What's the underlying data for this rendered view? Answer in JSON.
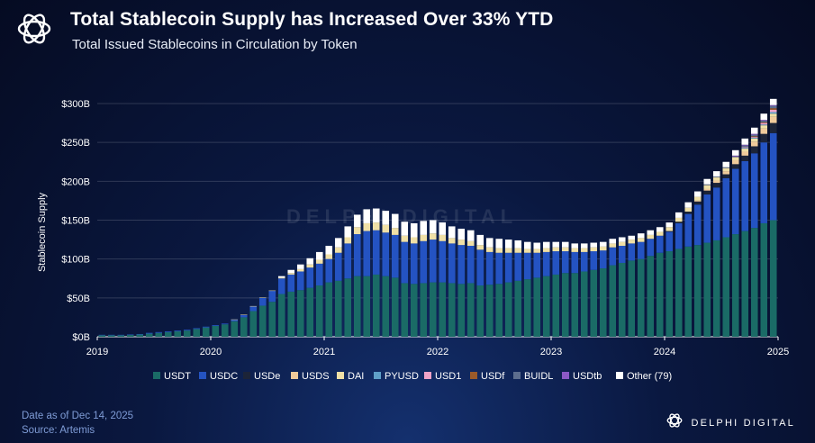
{
  "header": {
    "title": "Total Stablecoin Supply has Increased Over 33% YTD",
    "subtitle": "Total Issued Stablecoins in Circulation by Token"
  },
  "footer": {
    "date_note": "Date as of Dec 14, 2025",
    "source": "Source: Artemis"
  },
  "brand": {
    "name": "DELPHI DIGITAL",
    "watermark": "DELPHI DIGITAL"
  },
  "colors": {
    "USDT": "#1a6b66",
    "USDC": "#2453c2",
    "USDe": "#1c2438",
    "USDS": "#f1cb9b",
    "DAI": "#f0e0a6",
    "PYUSD": "#5fa0c8",
    "USD1": "#f0a3c8",
    "USDf": "#9a5a2a",
    "BUIDL": "#5d6e8e",
    "USDtb": "#8b59c6",
    "Other": "#ffffff"
  },
  "chart_data": {
    "type": "bar",
    "stacked": true,
    "ylabel": "Stablecoin Supply",
    "xlabel": "",
    "ylim": [
      0,
      300
    ],
    "y_unit": "billion USD",
    "y_ticks": [
      "$0B",
      "$50B",
      "$100B",
      "$150B",
      "$200B",
      "$250B",
      "$300B"
    ],
    "x_ticks": [
      "2019",
      "2020",
      "2021",
      "2022",
      "2023",
      "2024",
      "2025"
    ],
    "legend_position": "bottom",
    "legend": [
      "USDT",
      "USDC",
      "USDe",
      "USDS",
      "DAI",
      "PYUSD",
      "USD1",
      "USDf",
      "BUIDL",
      "USDtb",
      "Other (79)"
    ],
    "categories": [
      "2019-01",
      "2019-02",
      "2019-03",
      "2019-04",
      "2019-05",
      "2019-06",
      "2019-07",
      "2019-08",
      "2019-09",
      "2019-10",
      "2019-11",
      "2019-12",
      "2020-01",
      "2020-02",
      "2020-03",
      "2020-04",
      "2020-05",
      "2020-06",
      "2020-07",
      "2020-08",
      "2020-09",
      "2020-10",
      "2020-11",
      "2020-12",
      "2021-01",
      "2021-02",
      "2021-03",
      "2021-04",
      "2021-05",
      "2021-06",
      "2021-07",
      "2021-08",
      "2021-09",
      "2021-10",
      "2021-11",
      "2021-12",
      "2022-01",
      "2022-02",
      "2022-03",
      "2022-04",
      "2022-05",
      "2022-06",
      "2022-07",
      "2022-08",
      "2022-09",
      "2022-10",
      "2022-11",
      "2022-12",
      "2023-01",
      "2023-02",
      "2023-03",
      "2023-04",
      "2023-05",
      "2023-06",
      "2023-07",
      "2023-08",
      "2023-09",
      "2023-10",
      "2023-11",
      "2023-12",
      "2024-01",
      "2024-02",
      "2024-03",
      "2024-04",
      "2024-05",
      "2024-06",
      "2024-07",
      "2024-08",
      "2024-09",
      "2024-10",
      "2024-11",
      "2024-12"
    ],
    "series": [
      {
        "name": "USDT",
        "values": [
          2,
          2,
          2,
          2.5,
          3,
          4,
          5,
          6,
          7,
          8,
          10,
          12,
          14,
          16,
          20,
          25,
          33,
          40,
          45,
          55,
          58,
          60,
          63,
          66,
          70,
          72,
          75,
          78,
          78,
          80,
          78,
          76,
          69,
          68,
          69,
          70,
          70,
          69,
          68,
          69,
          66,
          67,
          68,
          70,
          72,
          74,
          76,
          78,
          80,
          82,
          82,
          84,
          86,
          88,
          92,
          95,
          98,
          100,
          104,
          108,
          110,
          113,
          116,
          118,
          121,
          124,
          128,
          132,
          136,
          140,
          146,
          150
        ]
      },
      {
        "name": "USDC",
        "values": [
          0.5,
          0.5,
          0.5,
          0.5,
          0.5,
          1,
          1,
          1,
          1,
          1,
          1,
          1,
          1,
          1,
          2,
          3,
          6,
          10,
          14,
          20,
          22,
          24,
          26,
          28,
          30,
          36,
          45,
          54,
          58,
          57,
          56,
          55,
          53,
          52,
          54,
          55,
          53,
          51,
          50,
          48,
          46,
          42,
          40,
          38,
          36,
          34,
          32,
          31,
          30,
          28,
          27,
          25,
          24,
          23,
          23,
          22,
          22,
          22,
          22,
          22,
          25,
          33,
          42,
          52,
          62,
          68,
          76,
          84,
          90,
          96,
          104,
          112
        ]
      },
      {
        "name": "USDe",
        "values": [
          0,
          0,
          0,
          0,
          0,
          0,
          0,
          0,
          0,
          0,
          0,
          0,
          0,
          0,
          0,
          0,
          0,
          0,
          0,
          0,
          0,
          0,
          0,
          0,
          0,
          0,
          0,
          0,
          0,
          0,
          0,
          0,
          0,
          0,
          0,
          0,
          0,
          0,
          0,
          0,
          0,
          0,
          0,
          0,
          0,
          0,
          0,
          0,
          0,
          0,
          0,
          0,
          0,
          0,
          0,
          0,
          0,
          0,
          0,
          0,
          1,
          2,
          3,
          4,
          5,
          6,
          5,
          6,
          7,
          9,
          11,
          13
        ]
      },
      {
        "name": "USDS",
        "values": [
          0,
          0,
          0,
          0,
          0,
          0,
          0,
          0,
          0,
          0,
          0,
          0,
          0,
          0,
          0,
          0,
          0,
          0,
          0,
          0,
          0,
          0,
          0,
          0,
          0,
          0,
          0,
          0,
          0,
          0,
          0,
          0,
          0,
          0,
          0,
          0,
          0,
          0,
          0,
          0,
          0,
          0,
          0,
          0,
          0,
          0,
          0,
          0,
          0,
          0,
          0,
          0,
          0,
          0,
          0,
          0,
          0,
          0,
          0,
          0,
          0,
          0,
          0,
          1,
          2,
          3,
          4,
          5,
          5,
          6,
          7,
          8
        ]
      },
      {
        "name": "DAI",
        "values": [
          0,
          0,
          0,
          0,
          0,
          0,
          0,
          0,
          0,
          0,
          0,
          0,
          0,
          0,
          0.3,
          0.5,
          0.5,
          0.5,
          0.5,
          1,
          2,
          3,
          4,
          5,
          6,
          7,
          8,
          9,
          10,
          10,
          10,
          9,
          8,
          8,
          8,
          8,
          8,
          7,
          7,
          6,
          6,
          6,
          6,
          6,
          6,
          5,
          5,
          5,
          5,
          5,
          5,
          5,
          5,
          5,
          5,
          5,
          5,
          5,
          5,
          5,
          5,
          5,
          5,
          5,
          5,
          4,
          4,
          4,
          4,
          4,
          4,
          4
        ]
      },
      {
        "name": "PYUSD",
        "values": [
          0,
          0,
          0,
          0,
          0,
          0,
          0,
          0,
          0,
          0,
          0,
          0,
          0,
          0,
          0,
          0,
          0,
          0,
          0,
          0,
          0,
          0,
          0,
          0,
          0,
          0,
          0,
          0,
          0,
          0,
          0,
          0,
          0,
          0,
          0,
          0,
          0,
          0,
          0,
          0,
          0,
          0,
          0,
          0,
          0,
          0,
          0,
          0,
          0,
          0,
          0,
          0,
          0,
          0,
          0,
          0,
          0,
          0,
          0,
          0,
          0,
          0,
          0,
          0,
          0,
          0,
          0,
          0,
          1,
          1,
          1,
          2
        ]
      },
      {
        "name": "USD1",
        "values": [
          0,
          0,
          0,
          0,
          0,
          0,
          0,
          0,
          0,
          0,
          0,
          0,
          0,
          0,
          0,
          0,
          0,
          0,
          0,
          0,
          0,
          0,
          0,
          0,
          0,
          0,
          0,
          0,
          0,
          0,
          0,
          0,
          0,
          0,
          0,
          0,
          0,
          0,
          0,
          0,
          0,
          0,
          0,
          0,
          0,
          0,
          0,
          0,
          0,
          0,
          0,
          0,
          0,
          0,
          0,
          0,
          0,
          0,
          0,
          0,
          0,
          0,
          0,
          0,
          0,
          0,
          0,
          0,
          1,
          1,
          2,
          3
        ]
      },
      {
        "name": "USDf",
        "values": [
          0,
          0,
          0,
          0,
          0,
          0,
          0,
          0,
          0,
          0,
          0,
          0,
          0,
          0,
          0,
          0,
          0,
          0,
          0,
          0,
          0,
          0,
          0,
          0,
          0,
          0,
          0,
          0,
          0,
          0,
          0,
          0,
          0,
          0,
          0,
          0,
          0,
          0,
          0,
          0,
          0,
          0,
          0,
          0,
          0,
          0,
          0,
          0,
          0,
          0,
          0,
          0,
          0,
          0,
          0,
          0,
          0,
          0,
          0,
          0,
          0,
          0,
          0,
          0,
          0,
          0,
          0,
          0,
          0,
          1,
          1,
          2
        ]
      },
      {
        "name": "BUIDL",
        "values": [
          0,
          0,
          0,
          0,
          0,
          0,
          0,
          0,
          0,
          0,
          0,
          0,
          0,
          0,
          0,
          0,
          0,
          0,
          0,
          0,
          0,
          0,
          0,
          0,
          0,
          0,
          0,
          0,
          0,
          0,
          0,
          0,
          0,
          0,
          0,
          0,
          0,
          0,
          0,
          0,
          0,
          0,
          0,
          0,
          0,
          0,
          0,
          0,
          0,
          0,
          0,
          0,
          0,
          0,
          0,
          0,
          0,
          0,
          0,
          0,
          0,
          0,
          0,
          0,
          1,
          1,
          1,
          1,
          2,
          2,
          2,
          3
        ]
      },
      {
        "name": "USDtb",
        "values": [
          0,
          0,
          0,
          0,
          0,
          0,
          0,
          0,
          0,
          0,
          0,
          0,
          0,
          0,
          0,
          0,
          0,
          0,
          0,
          0,
          0,
          0,
          0,
          0,
          0,
          0,
          0,
          0,
          0,
          0,
          0,
          0,
          0,
          0,
          0,
          0,
          0,
          0,
          0,
          0,
          0,
          0,
          0,
          0,
          0,
          0,
          0,
          0,
          0,
          0,
          0,
          0,
          0,
          0,
          0,
          0,
          0,
          0,
          0,
          0,
          0,
          0,
          0,
          0,
          0,
          0,
          0,
          1,
          1,
          1,
          1,
          1
        ]
      },
      {
        "name": "Other (79)",
        "values": [
          0,
          0,
          0,
          0,
          0,
          0,
          0,
          0,
          0,
          0,
          0,
          0,
          0,
          0,
          0,
          0,
          0,
          0,
          0,
          2,
          4,
          6,
          8,
          10,
          11,
          12,
          14,
          16,
          18,
          18,
          18,
          18,
          18,
          18,
          18,
          17,
          16,
          15,
          14,
          14,
          13,
          12,
          12,
          11,
          10,
          9,
          8,
          8,
          7,
          7,
          6,
          6,
          6,
          6,
          6,
          6,
          5,
          6,
          6,
          6,
          6,
          7,
          7,
          7,
          7,
          7,
          7,
          7,
          8,
          8,
          8,
          8
        ]
      }
    ]
  }
}
